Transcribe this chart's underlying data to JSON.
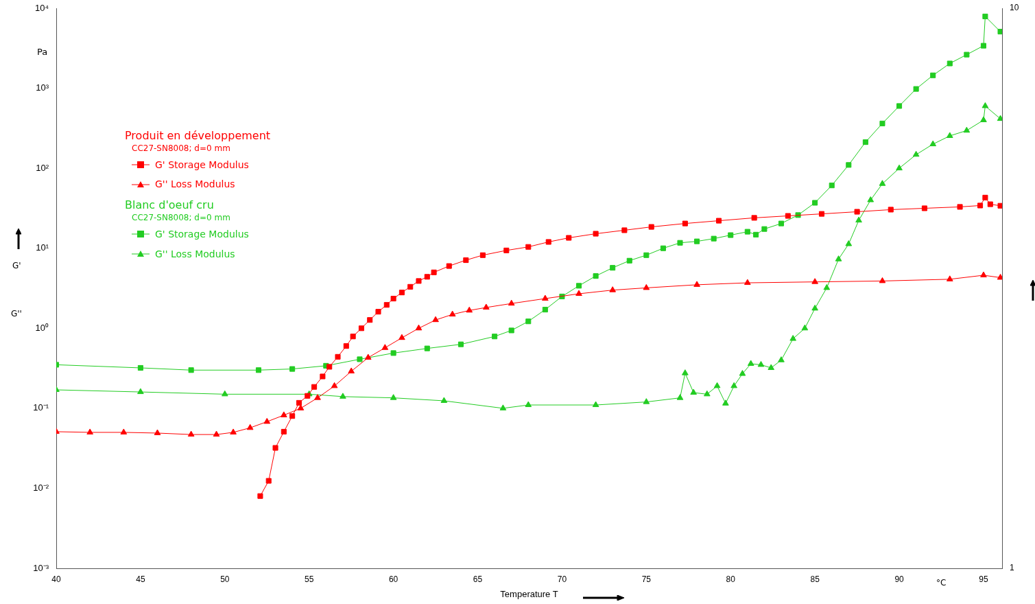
{
  "chart_data": {
    "type": "line",
    "xlabel": "Temperature T",
    "ylabel": "Pa",
    "annotations": [
      "Produit en développement",
      "CC27-SN8008; d=0 mm",
      "Blanc d'oeuf cru",
      "CC27-SN8008; d=0 mm",
      "G'",
      "G''",
      "°C"
    ],
    "xlim": [
      40,
      96.1
    ],
    "xticks": [
      40,
      45,
      50,
      55,
      60,
      65,
      70,
      75,
      80,
      85,
      90,
      95
    ],
    "ylim": [
      0.001,
      10000
    ],
    "yticks": [
      {
        "value": 0.001,
        "label": "10⁻³"
      },
      {
        "value": 0.01,
        "label": "10⁻²"
      },
      {
        "value": 0.1,
        "label": "10⁻¹"
      },
      {
        "value": 1,
        "label": "10⁰"
      },
      {
        "value": 10,
        "label": "10¹"
      },
      {
        "value": 100,
        "label": "10²"
      },
      {
        "value": 1000,
        "label": "10³"
      },
      {
        "value": 10000,
        "label": "10⁴"
      }
    ],
    "y2lim": [
      1,
      10
    ],
    "y2ticks": [
      1,
      10
    ],
    "log": "y",
    "grid": false,
    "legend": "top left",
    "line_style": "solid",
    "series": [
      {
        "name": "G'  Storage Modulus",
        "color": "#ff0000",
        "marker": "square",
        "x": [
          52.1,
          52.6,
          53.0,
          53.5,
          54.0,
          54.4,
          54.9,
          55.3,
          55.8,
          56.2,
          56.7,
          57.2,
          57.6,
          58.1,
          58.6,
          59.1,
          59.6,
          60.0,
          60.5,
          61.0,
          61.5,
          62.0,
          62.4,
          63.3,
          64.3,
          65.3,
          66.7,
          68.0,
          69.2,
          70.4,
          72.0,
          73.7,
          75.3,
          77.3,
          79.3,
          81.4,
          83.4,
          85.4,
          87.5,
          89.5,
          91.5,
          93.6,
          94.8,
          95.1,
          95.4,
          96.0
        ],
        "values": [
          0.008,
          0.0124,
          0.032,
          0.051,
          0.08,
          0.117,
          0.143,
          0.185,
          0.25,
          0.33,
          0.44,
          0.6,
          0.79,
          1.0,
          1.27,
          1.61,
          1.96,
          2.35,
          2.8,
          3.3,
          3.9,
          4.4,
          5.0,
          6.0,
          7.1,
          8.2,
          9.4,
          10.4,
          12.0,
          13.5,
          15.2,
          16.8,
          18.5,
          20.4,
          22.1,
          24,
          25.4,
          26.9,
          28.6,
          30.4,
          31.6,
          32.9,
          34.2,
          43,
          35.5,
          34
        ]
      },
      {
        "name": "G''  Loss Modulus",
        "color": "#ff0000",
        "marker": "triangle",
        "x": [
          40,
          42,
          44,
          46,
          48,
          49.5,
          50.5,
          51.5,
          52.5,
          53.5,
          54.5,
          55.5,
          56.5,
          57.5,
          58.5,
          59.5,
          60.5,
          61.5,
          62.5,
          63.5,
          64.5,
          65.5,
          67,
          69,
          71,
          73,
          75,
          78,
          81,
          85,
          89,
          93,
          95,
          96
        ],
        "values": [
          0.051,
          0.05,
          0.05,
          0.049,
          0.047,
          0.047,
          0.05,
          0.057,
          0.068,
          0.082,
          0.1,
          0.135,
          0.19,
          0.29,
          0.43,
          0.57,
          0.76,
          1.0,
          1.27,
          1.49,
          1.67,
          1.82,
          2.04,
          2.35,
          2.7,
          3.0,
          3.2,
          3.5,
          3.7,
          3.8,
          3.9,
          4.1,
          4.6,
          4.3
        ]
      },
      {
        "name": "G'  Storage Modulus",
        "color": "#22cc22",
        "marker": "square",
        "x": [
          40,
          45,
          48,
          52,
          54,
          56,
          58,
          60,
          62,
          64,
          66,
          67,
          68,
          69,
          70,
          71,
          72,
          73,
          74,
          75,
          76,
          77,
          78,
          79,
          80,
          81,
          81.5,
          82,
          83,
          84,
          85,
          86,
          87,
          88,
          89,
          90,
          91,
          92,
          93,
          94,
          95,
          95.1,
          96
        ],
        "values": [
          0.35,
          0.32,
          0.3,
          0.3,
          0.31,
          0.34,
          0.41,
          0.49,
          0.56,
          0.63,
          0.79,
          0.94,
          1.22,
          1.71,
          2.5,
          3.4,
          4.5,
          5.7,
          7.0,
          8.2,
          10,
          11.7,
          12.2,
          13.2,
          14.6,
          16.1,
          14.8,
          17.4,
          20.4,
          26,
          37,
          61,
          110,
          212,
          363,
          600,
          980,
          1450,
          2040,
          2630,
          3400,
          7900,
          5100
        ]
      },
      {
        "name": "G''  Loss Modulus",
        "color": "#22cc22",
        "marker": "triangle",
        "x": [
          40,
          45,
          50,
          55,
          57,
          60,
          63,
          66.5,
          68,
          72,
          75,
          77,
          77.3,
          77.8,
          78.6,
          79.2,
          79.7,
          80.2,
          80.7,
          81.2,
          81.8,
          82.4,
          83,
          83.7,
          84.4,
          85,
          85.7,
          86.4,
          87,
          87.6,
          88.3,
          89,
          90,
          91,
          92,
          93,
          94,
          95,
          95.1,
          96
        ],
        "values": [
          0.17,
          0.16,
          0.15,
          0.15,
          0.14,
          0.135,
          0.124,
          0.1,
          0.11,
          0.11,
          0.12,
          0.135,
          0.275,
          0.157,
          0.15,
          0.19,
          0.115,
          0.19,
          0.27,
          0.36,
          0.35,
          0.32,
          0.4,
          0.74,
          1.0,
          1.77,
          3.2,
          7.3,
          11.3,
          22.3,
          40,
          64,
          100,
          148,
          200,
          254,
          296,
          400,
          600,
          415
        ]
      }
    ]
  }
}
